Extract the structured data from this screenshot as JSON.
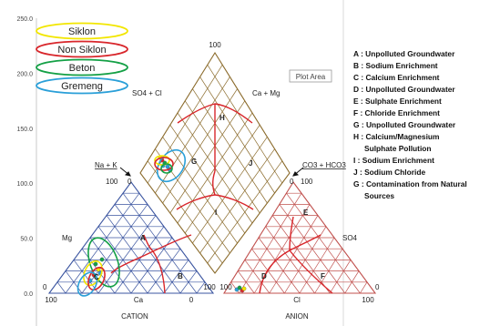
{
  "chart_data": {
    "type": "scatter",
    "title": "",
    "y_axis": {
      "ticks": [
        "250.0",
        "200.0",
        "150.0",
        "100.0",
        "50.0",
        "0.0"
      ],
      "range": [
        0,
        250
      ]
    },
    "overlay_label": "Plot Area",
    "series": [
      {
        "name": "Siklon",
        "color": "#f2e600"
      },
      {
        "name": "Non Siklon",
        "color": "#d8262b"
      },
      {
        "name": "Beton",
        "color": "#14a046"
      },
      {
        "name": "Gremeng",
        "color": "#2a9fd8"
      }
    ],
    "cation": {
      "title": "CATION",
      "left_label": "Mg",
      "top_label": "Na + K",
      "bottom_label": "Ca",
      "top_value": "100",
      "top_zero": "0",
      "bottom_left_zero": "0",
      "bottom_left_100": "100",
      "bottom_right_zero": "0",
      "right_100": "100",
      "region_labels": [
        "A",
        "B",
        "C"
      ]
    },
    "anion": {
      "title": "ANION",
      "right_label": "SO4",
      "top_label": "CO3 + HCO3",
      "bottom_label": "Cl",
      "top_value": "100",
      "top_zero": "0",
      "bottom_left_100": "100",
      "bottom_right_100": "100",
      "bottom_right_zero": "0",
      "region_labels": [
        "D",
        "E",
        "F"
      ]
    },
    "diamond": {
      "top_value": "100",
      "left_label": "SO4 + Cl",
      "right_label": "Ca + Mg",
      "region_labels": [
        "G",
        "H",
        "I",
        "J"
      ]
    },
    "classification": [
      "A : Unpolluted Groundwater",
      "B : Sodium Enrichment",
      "C : Calcium Enrichment",
      "D : Unpolluted Groundwater",
      "E : Sulphate Enrichment",
      "F : Chloride Enrichment",
      "G : Unpolluted Groundwater",
      "H : Calcium/Magnesium",
      "Sulphate Pollution",
      "I : Sodium Enrichment",
      "J :  Sodium Chloride",
      "G : Contamination from Natural",
      "Sources"
    ]
  }
}
